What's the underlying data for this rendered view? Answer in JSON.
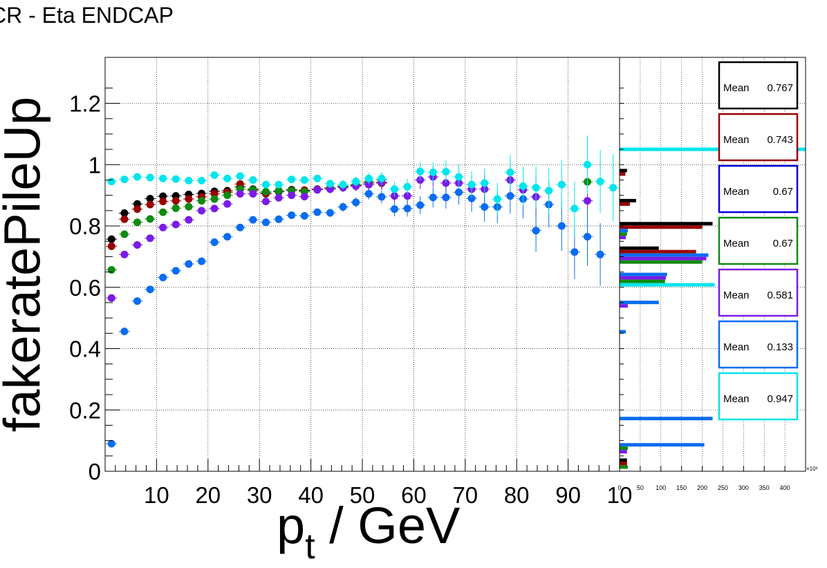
{
  "chart_data": {
    "title": "CR - Eta ENDCAP",
    "main": {
      "type": "scatter",
      "xlabel_base": "p",
      "xlabel_sub": "t",
      "xlabel_rest": " / GeV",
      "ylabel": "fakeratePileUp",
      "xlim": [
        0,
        100
      ],
      "ylim": [
        0,
        1.35
      ],
      "xticks": [
        "10",
        "20",
        "30",
        "40",
        "50",
        "60",
        "70",
        "80",
        "90",
        "10"
      ],
      "yticks": [
        "0",
        "0.2",
        "0.4",
        "0.6",
        "0.8",
        "1",
        "1.2"
      ],
      "x": [
        1.25,
        3.75,
        6.25,
        8.75,
        11.25,
        13.75,
        16.25,
        18.75,
        21.25,
        23.75,
        26.25,
        28.75,
        31.25,
        33.75,
        36.25,
        38.75,
        41.25,
        43.75,
        46.25,
        48.75,
        51.25,
        53.75,
        56.25,
        58.75,
        61.25,
        63.75,
        66.25,
        68.75,
        71.25,
        73.75,
        76.25,
        78.75,
        81.25,
        83.75,
        86.25,
        88.75,
        91.25,
        93.75,
        96.25,
        98.75
      ],
      "series": [
        {
          "color": "#000000",
          "values": [
            0.757,
            0.842,
            0.872,
            0.889,
            0.897,
            0.898,
            0.903,
            0.906,
            0.913,
            0.915,
            0.927,
            0.92,
            0.908,
            0.912,
            0.918,
            0.915,
            0.92,
            0.922,
            0.93,
            0.935,
            0.94,
            0.94,
            null,
            null,
            null,
            null,
            null,
            null,
            null,
            null,
            null,
            null,
            null,
            null,
            null,
            null,
            null,
            null,
            null,
            null
          ]
        },
        {
          "color": "#990000",
          "values": [
            0.734,
            0.822,
            0.855,
            0.87,
            0.88,
            0.882,
            0.888,
            0.895,
            0.905,
            0.91,
            0.937,
            0.915,
            0.905,
            0.915,
            0.915,
            0.917,
            0.92,
            0.922,
            0.928,
            0.932,
            0.935,
            0.94,
            null,
            null,
            null,
            null,
            null,
            null,
            null,
            null,
            null,
            null,
            null,
            null,
            null,
            null,
            null,
            null,
            null,
            null
          ]
        },
        {
          "color": "#0f8a0f",
          "values": [
            0.657,
            0.773,
            0.812,
            0.823,
            0.845,
            0.858,
            0.863,
            0.882,
            0.888,
            0.9,
            0.92,
            0.918,
            0.912,
            0.915,
            0.915,
            0.912,
            0.918,
            0.925,
            0.93,
            0.935,
            0.945,
            0.95,
            null,
            null,
            null,
            null,
            null,
            null,
            null,
            null,
            null,
            null,
            null,
            null,
            null,
            null,
            null,
            0.944,
            null,
            null
          ]
        },
        {
          "color": "#7a1be8",
          "values": [
            0.565,
            0.707,
            0.738,
            0.76,
            0.795,
            0.805,
            0.82,
            0.85,
            0.857,
            0.872,
            0.905,
            0.905,
            0.88,
            0.892,
            0.9,
            0.896,
            0.918,
            0.92,
            0.925,
            0.93,
            0.935,
            0.943,
            0.898,
            0.898,
            0.95,
            0.96,
            0.94,
            0.94,
            0.92,
            0.92,
            null,
            0.95,
            0.918,
            0.895,
            null,
            null,
            null,
            0.882,
            null,
            null
          ]
        },
        {
          "color": "#0a6cf0",
          "values": [
            0.09,
            0.456,
            0.555,
            0.593,
            0.632,
            0.654,
            0.676,
            0.685,
            0.747,
            0.765,
            0.795,
            0.82,
            0.812,
            0.822,
            0.835,
            0.833,
            0.845,
            0.843,
            0.862,
            0.877,
            0.905,
            0.895,
            0.855,
            0.857,
            0.868,
            0.893,
            0.893,
            0.91,
            0.89,
            0.862,
            0.862,
            0.898,
            0.888,
            0.785,
            0.87,
            0.8,
            0.715,
            0.765,
            0.707,
            null
          ]
        },
        {
          "color": "#00e5ec",
          "values": [
            0.945,
            0.952,
            0.96,
            0.958,
            0.955,
            0.953,
            0.948,
            0.948,
            0.966,
            0.955,
            0.963,
            0.95,
            0.935,
            0.935,
            0.952,
            0.95,
            0.955,
            0.938,
            0.935,
            0.945,
            0.955,
            0.955,
            0.92,
            0.928,
            0.978,
            0.975,
            0.977,
            0.96,
            0.935,
            0.94,
            0.888,
            0.975,
            0.93,
            0.925,
            0.915,
            0.935,
            0.857,
            1.0,
            0.945,
            0.925
          ]
        }
      ]
    },
    "side": {
      "type": "bar",
      "orientation": "horizontal",
      "xticks": [
        "0",
        "50",
        "100",
        "150",
        "200",
        "250",
        "300",
        "350",
        "400"
      ],
      "xscale_label": "×10³",
      "bins": [
        {
          "y": 1.05,
          "bars": [
            {
              "color": "#00e5ec",
              "value": 450
            }
          ]
        },
        {
          "y": 0.975,
          "bars": [
            {
              "color": "#000000",
              "value": 18
            },
            {
              "color": "#990000",
              "value": 14
            }
          ]
        },
        {
          "y": 0.877,
          "bars": [
            {
              "color": "#000000",
              "value": 40
            },
            {
              "color": "#990000",
              "value": 25
            }
          ]
        },
        {
          "y": 0.785,
          "bars": [
            {
              "color": "#000000",
              "value": 225
            },
            {
              "color": "#990000",
              "value": 200
            },
            {
              "color": "#0a6cf0",
              "value": 20
            },
            {
              "color": "#0f8a0f",
              "value": 18
            },
            {
              "color": "#7a1be8",
              "value": 15
            }
          ]
        },
        {
          "y": 0.705,
          "bars": [
            {
              "color": "#000000",
              "value": 95
            },
            {
              "color": "#990000",
              "value": 185
            },
            {
              "color": "#0a6cf0",
              "value": 215
            },
            {
              "color": "#7a1be8",
              "value": 210
            },
            {
              "color": "#0f8a0f",
              "value": 200
            }
          ]
        },
        {
          "y": 0.625,
          "bars": [
            {
              "color": "#0a6cf0",
              "value": 115
            },
            {
              "color": "#7a1be8",
              "value": 112
            },
            {
              "color": "#0f8a0f",
              "value": 110
            },
            {
              "color": "#00e5ec",
              "value": 230
            }
          ]
        },
        {
          "y": 0.545,
          "bars": [
            {
              "color": "#0a6cf0",
              "value": 95
            },
            {
              "color": "#7a1be8",
              "value": 20
            }
          ]
        },
        {
          "y": 0.455,
          "bars": [
            {
              "color": "#0a6cf0",
              "value": 15
            }
          ]
        },
        {
          "y": 0.172,
          "bars": [
            {
              "color": "#0a6cf0",
              "value": 225
            }
          ]
        },
        {
          "y": 0.075,
          "bars": [
            {
              "color": "#0a6cf0",
              "value": 205
            },
            {
              "color": "#0f8a0f",
              "value": 20
            },
            {
              "color": "#7a1be8",
              "value": 18
            }
          ]
        },
        {
          "y": 0.025,
          "bars": [
            {
              "color": "#000000",
              "value": 18
            },
            {
              "color": "#990000",
              "value": 18
            },
            {
              "color": "#0f8a0f",
              "value": 20
            }
          ]
        }
      ]
    },
    "legend": [
      {
        "label": "Mean",
        "value": "0.767",
        "color": "#000000"
      },
      {
        "label": "Mean",
        "value": "0.743",
        "color": "#990000"
      },
      {
        "label": "Mean",
        "value": "0.67",
        "color": "#0000dd"
      },
      {
        "label": "Mean",
        "value": "0.67",
        "color": "#0f8a0f"
      },
      {
        "label": "Mean",
        "value": "0.581",
        "color": "#7a1be8"
      },
      {
        "label": "Mean",
        "value": "0.133",
        "color": "#0a6cf0"
      },
      {
        "label": "Mean",
        "value": "0.947",
        "color": "#00e5ec"
      }
    ]
  }
}
